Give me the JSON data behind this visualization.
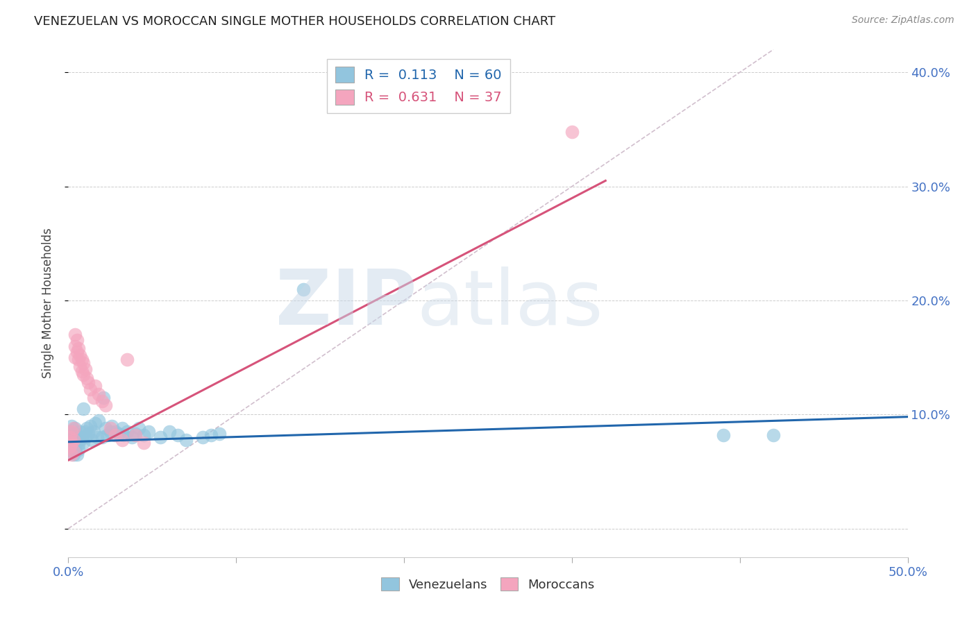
{
  "title": "VENEZUELAN VS MOROCCAN SINGLE MOTHER HOUSEHOLDS CORRELATION CHART",
  "source": "Source: ZipAtlas.com",
  "ylabel": "Single Mother Households",
  "watermark": "ZIPatlas",
  "xlim": [
    0.0,
    0.5
  ],
  "ylim": [
    -0.025,
    0.42
  ],
  "legend_R_blue": "0.113",
  "legend_N_blue": "60",
  "legend_R_pink": "0.631",
  "legend_N_pink": "37",
  "blue_color": "#92c5de",
  "pink_color": "#f4a5be",
  "blue_line_color": "#2166ac",
  "pink_line_color": "#d6537a",
  "diagonal_color": "#ccb8c8",
  "venezuelan_x": [
    0.001,
    0.001,
    0.001,
    0.002,
    0.002,
    0.002,
    0.002,
    0.003,
    0.003,
    0.003,
    0.003,
    0.004,
    0.004,
    0.004,
    0.005,
    0.005,
    0.005,
    0.006,
    0.006,
    0.007,
    0.007,
    0.008,
    0.009,
    0.009,
    0.01,
    0.01,
    0.011,
    0.012,
    0.013,
    0.014,
    0.015,
    0.016,
    0.017,
    0.018,
    0.02,
    0.021,
    0.022,
    0.023,
    0.025,
    0.026,
    0.028,
    0.03,
    0.032,
    0.033,
    0.035,
    0.038,
    0.04,
    0.042,
    0.045,
    0.048,
    0.055,
    0.06,
    0.065,
    0.07,
    0.08,
    0.085,
    0.09,
    0.14,
    0.39,
    0.42
  ],
  "venezuelan_y": [
    0.085,
    0.078,
    0.072,
    0.082,
    0.075,
    0.068,
    0.09,
    0.08,
    0.073,
    0.065,
    0.076,
    0.083,
    0.07,
    0.088,
    0.077,
    0.065,
    0.08,
    0.074,
    0.069,
    0.078,
    0.085,
    0.08,
    0.105,
    0.075,
    0.085,
    0.08,
    0.088,
    0.083,
    0.09,
    0.078,
    0.085,
    0.092,
    0.08,
    0.095,
    0.08,
    0.115,
    0.088,
    0.082,
    0.085,
    0.09,
    0.085,
    0.083,
    0.088,
    0.082,
    0.085,
    0.08,
    0.083,
    0.088,
    0.082,
    0.085,
    0.08,
    0.085,
    0.082,
    0.078,
    0.08,
    0.082,
    0.083,
    0.21,
    0.082,
    0.082
  ],
  "moroccan_x": [
    0.001,
    0.001,
    0.002,
    0.002,
    0.002,
    0.003,
    0.003,
    0.003,
    0.004,
    0.004,
    0.004,
    0.005,
    0.005,
    0.006,
    0.006,
    0.007,
    0.007,
    0.008,
    0.008,
    0.009,
    0.009,
    0.01,
    0.011,
    0.012,
    0.013,
    0.015,
    0.016,
    0.018,
    0.02,
    0.022,
    0.025,
    0.028,
    0.032,
    0.035,
    0.04,
    0.045,
    0.3
  ],
  "moroccan_y": [
    0.08,
    0.072,
    0.085,
    0.075,
    0.065,
    0.088,
    0.078,
    0.068,
    0.16,
    0.17,
    0.15,
    0.165,
    0.155,
    0.158,
    0.148,
    0.152,
    0.142,
    0.148,
    0.138,
    0.145,
    0.135,
    0.14,
    0.132,
    0.128,
    0.122,
    0.115,
    0.125,
    0.118,
    0.112,
    0.108,
    0.088,
    0.082,
    0.078,
    0.148,
    0.082,
    0.075,
    0.348
  ],
  "blue_trendline": [
    [
      0.0,
      0.5
    ],
    [
      0.076,
      0.098
    ]
  ],
  "pink_trendline": [
    [
      0.0,
      0.32
    ],
    [
      0.06,
      0.305
    ]
  ]
}
